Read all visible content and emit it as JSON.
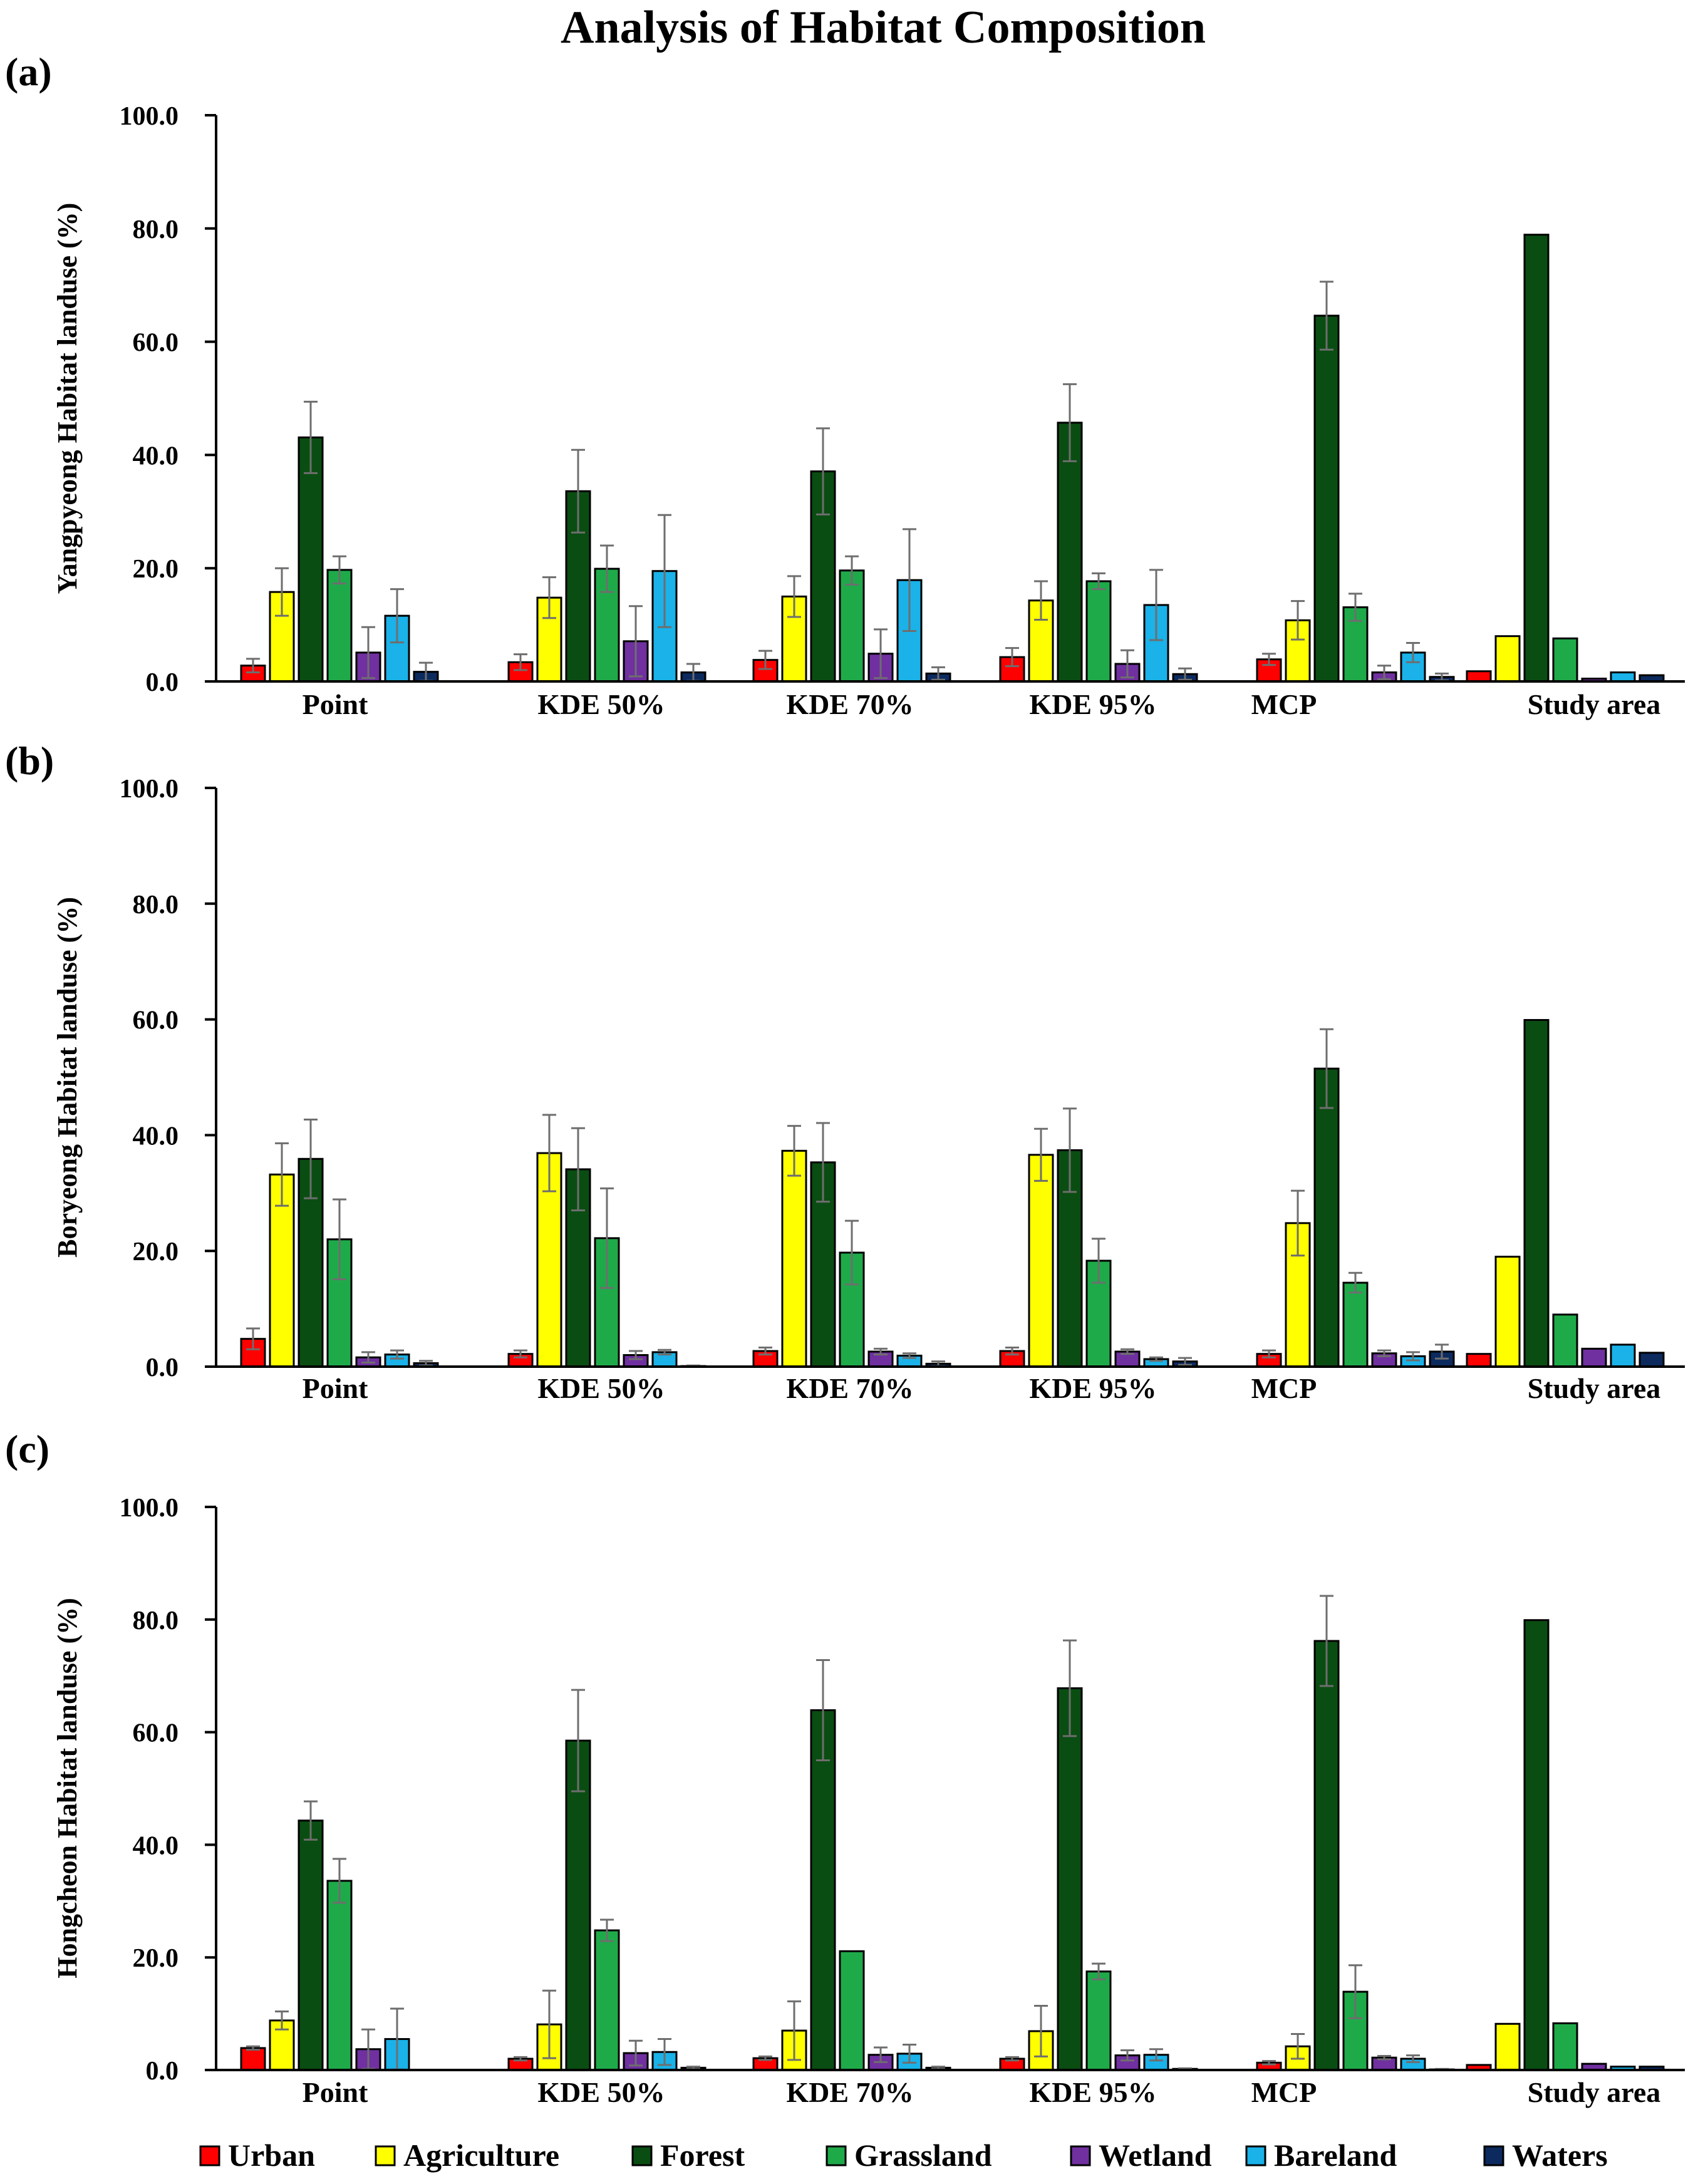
{
  "title": "Analysis of Habitat Composition",
  "legend": [
    {
      "name": "Urban",
      "color": "#ff0000"
    },
    {
      "name": "Agriculture",
      "color": "#ffff00"
    },
    {
      "name": "Forest",
      "color": "#0a4d12"
    },
    {
      "name": "Grassland",
      "color": "#1faa4a"
    },
    {
      "name": "Wetland",
      "color": "#7030a0"
    },
    {
      "name": "Bareland",
      "color": "#1ab2e8"
    },
    {
      "name": "Waters",
      "color": "#0c2a5e"
    }
  ],
  "chart_data": [
    {
      "type": "bar",
      "panel": "(a)",
      "title": "",
      "xlabel": "",
      "ylabel": "Yangpyeong Habitat landuse (%)",
      "ylim": [
        0,
        100
      ],
      "yticks": [
        "0.0",
        "20.0",
        "40.0",
        "60.0",
        "80.0",
        "100.0"
      ],
      "categories": [
        "Point",
        "KDE 50%",
        "KDE 70%",
        "KDE 95%",
        "MCP",
        "Study area"
      ],
      "series": [
        {
          "name": "Urban",
          "values": [
            2.8,
            3.4,
            3.8,
            4.3,
            3.9,
            1.8
          ],
          "errors": [
            1.2,
            1.4,
            1.6,
            1.6,
            1.0,
            null
          ]
        },
        {
          "name": "Agriculture",
          "values": [
            15.8,
            14.8,
            15.0,
            14.3,
            10.8,
            8.0
          ],
          "errors": [
            4.2,
            3.6,
            3.6,
            3.4,
            3.4,
            null
          ]
        },
        {
          "name": "Forest",
          "values": [
            43.1,
            33.6,
            37.1,
            45.7,
            64.6,
            78.9
          ],
          "errors": [
            6.3,
            7.3,
            7.6,
            6.8,
            6.0,
            null
          ]
        },
        {
          "name": "Grassland",
          "values": [
            19.7,
            19.9,
            19.6,
            17.7,
            13.1,
            7.6
          ],
          "errors": [
            2.4,
            4.1,
            2.5,
            1.4,
            2.4,
            null
          ]
        },
        {
          "name": "Wetland",
          "values": [
            5.1,
            7.1,
            4.9,
            3.1,
            1.6,
            0.5
          ],
          "errors": [
            4.5,
            6.2,
            4.3,
            2.4,
            1.2,
            null
          ]
        },
        {
          "name": "Bareland",
          "values": [
            11.6,
            19.5,
            17.9,
            13.5,
            5.1,
            1.6
          ],
          "errors": [
            4.7,
            9.9,
            9.0,
            6.2,
            1.7,
            null
          ]
        },
        {
          "name": "Waters",
          "values": [
            1.7,
            1.6,
            1.4,
            1.3,
            0.8,
            1.1
          ],
          "errors": [
            1.6,
            1.5,
            1.1,
            1.0,
            0.6,
            null
          ]
        }
      ]
    },
    {
      "type": "bar",
      "panel": "(b)",
      "title": "",
      "xlabel": "",
      "ylabel": "Boryeong Habitat landuse (%)",
      "ylim": [
        0,
        100
      ],
      "yticks": [
        "0.0",
        "20.0",
        "40.0",
        "60.0",
        "80.0",
        "100.0"
      ],
      "categories": [
        "Point",
        "KDE 50%",
        "KDE 70%",
        "KDE 95%",
        "MCP",
        "Study area"
      ],
      "series": [
        {
          "name": "Urban",
          "values": [
            4.8,
            2.2,
            2.7,
            2.7,
            2.2,
            2.2
          ],
          "errors": [
            1.8,
            0.6,
            0.6,
            0.6,
            0.6,
            null
          ]
        },
        {
          "name": "Agriculture",
          "values": [
            33.2,
            36.9,
            37.3,
            36.6,
            24.8,
            19.0
          ],
          "errors": [
            5.4,
            6.6,
            4.3,
            4.5,
            5.6,
            null
          ]
        },
        {
          "name": "Forest",
          "values": [
            35.9,
            34.1,
            35.3,
            37.4,
            51.5,
            59.9
          ],
          "errors": [
            6.8,
            7.1,
            6.8,
            7.2,
            6.8,
            null
          ]
        },
        {
          "name": "Grassland",
          "values": [
            22.0,
            22.2,
            19.7,
            18.3,
            14.5,
            9.0
          ],
          "errors": [
            6.9,
            8.6,
            5.5,
            3.8,
            1.7,
            null
          ]
        },
        {
          "name": "Wetland",
          "values": [
            1.6,
            2.0,
            2.6,
            2.6,
            2.3,
            3.1
          ],
          "errors": [
            0.9,
            0.7,
            0.5,
            0.4,
            0.5,
            null
          ]
        },
        {
          "name": "Bareland",
          "values": [
            2.1,
            2.5,
            1.9,
            1.3,
            1.8,
            3.8
          ],
          "errors": [
            0.7,
            0.4,
            0.4,
            0.3,
            0.7,
            null
          ]
        },
        {
          "name": "Waters",
          "values": [
            0.6,
            0.1,
            0.5,
            0.9,
            2.6,
            2.4
          ],
          "errors": [
            0.4,
            0.1,
            0.4,
            0.6,
            1.2,
            null
          ]
        }
      ]
    },
    {
      "type": "bar",
      "panel": "(c)",
      "title": "",
      "xlabel": "",
      "ylabel": "Hongcheon Habitat landuse (%)",
      "ylim": [
        0,
        100
      ],
      "yticks": [
        "0.0",
        "20.0",
        "40.0",
        "60.0",
        "80.0",
        "100.0"
      ],
      "categories": [
        "Point",
        "KDE 50%",
        "KDE 70%",
        "KDE 95%",
        "MCP",
        "Study area"
      ],
      "series": [
        {
          "name": "Urban",
          "values": [
            3.9,
            2.0,
            2.1,
            2.0,
            1.3,
            0.9
          ],
          "errors": [
            0.3,
            0.3,
            0.3,
            0.3,
            0.3,
            null
          ]
        },
        {
          "name": "Agriculture",
          "values": [
            8.8,
            8.1,
            7.0,
            6.9,
            4.2,
            8.2
          ],
          "errors": [
            1.6,
            6.0,
            5.2,
            4.5,
            2.2,
            null
          ]
        },
        {
          "name": "Forest",
          "values": [
            44.3,
            58.5,
            63.9,
            67.8,
            76.2,
            79.9
          ],
          "errors": [
            3.4,
            9.0,
            8.9,
            8.5,
            8.0,
            null
          ]
        },
        {
          "name": "Grassland",
          "values": [
            33.6,
            24.8,
            21.1,
            17.5,
            13.9,
            8.3
          ],
          "errors": [
            3.9,
            1.9,
            0.0,
            1.4,
            4.7,
            null
          ]
        },
        {
          "name": "Wetland",
          "values": [
            3.7,
            3.0,
            2.7,
            2.6,
            2.2,
            1.1
          ],
          "errors": [
            3.5,
            2.2,
            1.3,
            0.9,
            0.3,
            null
          ]
        },
        {
          "name": "Bareland",
          "values": [
            5.5,
            3.2,
            2.9,
            2.7,
            2.0,
            0.6
          ],
          "errors": [
            5.4,
            2.3,
            1.6,
            1.0,
            0.6,
            null
          ]
        },
        {
          "name": "Waters",
          "values": [
            0.0,
            0.4,
            0.4,
            0.2,
            0.1,
            0.6
          ],
          "errors": [
            0.0,
            0.2,
            0.2,
            0.1,
            0.1,
            null
          ]
        }
      ]
    }
  ]
}
